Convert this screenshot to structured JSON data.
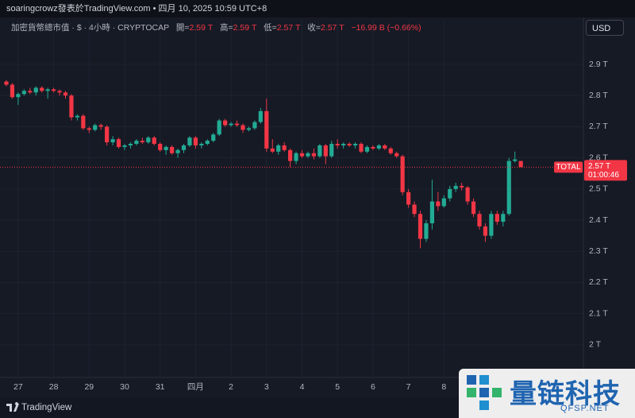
{
  "header": {
    "byline": "soaringcrowz發表於TradingView.com • 四月 10, 2025 10:59 UTC+8",
    "symbol": "加密貨幣總市值 · $ · 4小時 · CRYPTOCAP",
    "ohlc": [
      {
        "label": "開=",
        "value": "2.59 T"
      },
      {
        "label": "高=",
        "value": "2.59 T"
      },
      {
        "label": "低=",
        "value": "2.57 T"
      },
      {
        "label": "收=",
        "value": "2.57 T"
      }
    ],
    "change": "−16.99 B (−0.66%)",
    "currency": "USD"
  },
  "chart_data": {
    "type": "candlestick",
    "up_color": "#22ab94",
    "down_color": "#f23645",
    "grid": true,
    "categories": [
      null,
      null,
      "27",
      null,
      null,
      null,
      null,
      null,
      "28",
      null,
      null,
      null,
      null,
      null,
      "29",
      null,
      null,
      null,
      null,
      null,
      "30",
      null,
      null,
      null,
      null,
      null,
      "31",
      null,
      null,
      null,
      null,
      null,
      "四月",
      null,
      null,
      null,
      null,
      null,
      "2",
      null,
      null,
      null,
      null,
      null,
      "3",
      null,
      null,
      null,
      null,
      null,
      "4",
      null,
      null,
      null,
      null,
      null,
      "5",
      null,
      null,
      null,
      null,
      null,
      "6",
      null,
      null,
      null,
      null,
      null,
      "7",
      null,
      null,
      null,
      null,
      null,
      "8",
      null,
      null,
      null,
      null,
      null,
      null,
      null,
      null,
      null,
      null,
      null,
      null,
      null
    ],
    "open": [
      2.845,
      2.835,
      2.795,
      2.805,
      2.815,
      2.81,
      2.825,
      2.815,
      2.82,
      2.815,
      2.81,
      2.8,
      2.73,
      2.735,
      2.695,
      2.69,
      2.705,
      2.7,
      2.65,
      2.66,
      2.635,
      2.64,
      2.645,
      2.655,
      2.65,
      2.665,
      2.645,
      2.625,
      2.635,
      2.615,
      2.625,
      2.64,
      2.665,
      2.64,
      2.645,
      2.655,
      2.675,
      2.72,
      2.705,
      2.71,
      2.705,
      2.69,
      2.695,
      2.715,
      2.75,
      2.63,
      2.62,
      2.64,
      2.625,
      2.59,
      2.615,
      2.605,
      2.615,
      2.605,
      2.64,
      2.605,
      2.645,
      2.64,
      2.645,
      2.64,
      2.645,
      2.62,
      2.635,
      2.63,
      2.64,
      2.63,
      2.615,
      2.605,
      2.49,
      2.45,
      2.42,
      2.34,
      2.39,
      2.46,
      2.445,
      2.47,
      2.5,
      2.51,
      2.505,
      2.46,
      2.42,
      2.38,
      2.35,
      2.42,
      2.395,
      2.42,
      2.59,
      2.59
    ],
    "high": [
      2.85,
      2.84,
      2.81,
      2.82,
      2.825,
      2.83,
      2.83,
      2.825,
      2.825,
      2.82,
      2.815,
      2.805,
      2.74,
      2.74,
      2.7,
      2.71,
      2.71,
      2.705,
      2.67,
      2.665,
      2.645,
      2.65,
      2.66,
      2.665,
      2.67,
      2.67,
      2.65,
      2.64,
      2.64,
      2.63,
      2.645,
      2.67,
      2.67,
      2.65,
      2.66,
      2.68,
      2.725,
      2.725,
      2.715,
      2.72,
      2.71,
      2.7,
      2.72,
      2.76,
      2.79,
      2.66,
      2.645,
      2.65,
      2.63,
      2.62,
      2.625,
      2.62,
      2.63,
      2.645,
      2.645,
      2.655,
      2.66,
      2.65,
      2.65,
      2.65,
      2.65,
      2.64,
      2.64,
      2.645,
      2.645,
      2.635,
      2.62,
      2.61,
      2.5,
      2.46,
      2.43,
      2.4,
      2.53,
      2.49,
      2.48,
      2.51,
      2.52,
      2.52,
      2.51,
      2.47,
      2.43,
      2.39,
      2.43,
      2.43,
      2.43,
      2.6,
      2.62,
      2.59
    ],
    "low": [
      2.83,
      2.79,
      2.77,
      2.8,
      2.805,
      2.8,
      2.81,
      2.79,
      2.81,
      2.8,
      2.79,
      2.72,
      2.72,
      2.69,
      2.68,
      2.685,
      2.69,
      2.64,
      2.64,
      2.63,
      2.625,
      2.63,
      2.64,
      2.645,
      2.645,
      2.64,
      2.62,
      2.61,
      2.61,
      2.6,
      2.615,
      2.635,
      2.63,
      2.63,
      2.64,
      2.65,
      2.67,
      2.7,
      2.7,
      2.7,
      2.68,
      2.685,
      2.69,
      2.71,
      2.62,
      2.615,
      2.61,
      2.62,
      2.57,
      2.58,
      2.6,
      2.6,
      2.595,
      2.6,
      2.58,
      2.6,
      2.63,
      2.63,
      2.635,
      2.63,
      2.615,
      2.615,
      2.625,
      2.625,
      2.625,
      2.61,
      2.6,
      2.48,
      2.44,
      2.41,
      2.31,
      2.33,
      2.37,
      2.43,
      2.44,
      2.46,
      2.49,
      2.495,
      2.45,
      2.41,
      2.37,
      2.33,
      2.34,
      2.385,
      2.38,
      2.415,
      2.585,
      2.57
    ],
    "close": [
      2.835,
      2.795,
      2.805,
      2.815,
      2.81,
      2.825,
      2.815,
      2.82,
      2.815,
      2.81,
      2.8,
      2.73,
      2.735,
      2.695,
      2.69,
      2.705,
      2.7,
      2.65,
      2.66,
      2.635,
      2.64,
      2.645,
      2.655,
      2.65,
      2.665,
      2.645,
      2.625,
      2.635,
      2.615,
      2.625,
      2.64,
      2.665,
      2.64,
      2.645,
      2.655,
      2.675,
      2.72,
      2.705,
      2.71,
      2.705,
      2.69,
      2.695,
      2.715,
      2.75,
      2.63,
      2.62,
      2.64,
      2.625,
      2.59,
      2.615,
      2.605,
      2.615,
      2.605,
      2.64,
      2.605,
      2.645,
      2.64,
      2.645,
      2.64,
      2.645,
      2.62,
      2.635,
      2.63,
      2.64,
      2.63,
      2.615,
      2.605,
      2.49,
      2.45,
      2.42,
      2.34,
      2.39,
      2.46,
      2.445,
      2.47,
      2.5,
      2.51,
      2.505,
      2.46,
      2.42,
      2.38,
      2.35,
      2.42,
      2.395,
      2.42,
      2.59,
      2.595,
      2.57
    ],
    "ylim": [
      1.895,
      2.992
    ],
    "yticks": [
      {
        "value": 2,
        "label": "2 T"
      },
      {
        "value": 2.1,
        "label": "2.1 T"
      },
      {
        "value": 2.2,
        "label": "2.2 T"
      },
      {
        "value": 2.3,
        "label": "2.3 T"
      },
      {
        "value": 2.4,
        "label": "2.4 T"
      },
      {
        "value": 2.5,
        "label": "2.5 T"
      },
      {
        "value": 2.6,
        "label": "2.6 T"
      },
      {
        "value": 2.7,
        "label": "2.7 T"
      },
      {
        "value": 2.8,
        "label": "2.8 T"
      },
      {
        "value": 2.9,
        "label": "2.9 T"
      }
    ],
    "price_tag": {
      "name": "TOTAL",
      "price": "2.57 T",
      "countdown": "01:00:46"
    }
  },
  "footer": {
    "brand": "TradingView"
  },
  "watermark": {
    "title": "量链科技",
    "site": "QFSP.NET"
  }
}
